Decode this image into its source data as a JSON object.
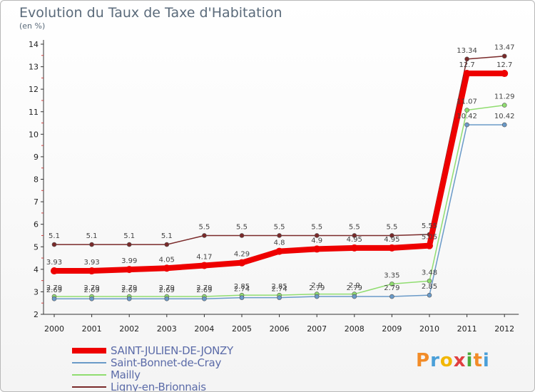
{
  "header": {
    "title": "Evolution du Taux de Taxe d'Habitation",
    "unit": "(en %)"
  },
  "logo": {
    "letters": [
      "P",
      "r",
      "o",
      "x",
      "i",
      "t",
      "i"
    ],
    "colors": [
      "#f28c28",
      "#4a9fd8",
      "#f2b705",
      "#e04040",
      "#4aaa3a",
      "#f28c28",
      "#4a9fd8"
    ]
  },
  "chart_data": {
    "type": "line",
    "title": "Evolution du Taux de Taxe d'Habitation",
    "ylabel": "(en %)",
    "xlabel": "",
    "ylim": [
      2,
      14
    ],
    "yticks": [
      2,
      3,
      4,
      5,
      6,
      7,
      8,
      9,
      10,
      11,
      12,
      13,
      14
    ],
    "categories": [
      "2000",
      "2001",
      "2002",
      "2003",
      "2004",
      "2005",
      "2006",
      "2007",
      "2008",
      "2009",
      "2010",
      "2011",
      "2012"
    ],
    "series": [
      {
        "name": "Ligny-en-Brionnais",
        "color": "#7a2a2a",
        "width": 1.5,
        "values": [
          5.1,
          5.1,
          5.1,
          5.1,
          5.5,
          5.5,
          5.5,
          5.5,
          5.5,
          5.5,
          5.55,
          13.34,
          13.47
        ],
        "labels": [
          "5.1",
          "5.1",
          "5.1",
          "5.1",
          "5.5",
          "5.5",
          "5.5",
          "5.5",
          "5.5",
          "5.5",
          "5.55",
          "13.34",
          "13.47"
        ]
      },
      {
        "name": "Mailly",
        "color": "#90dd70",
        "width": 1.5,
        "values": [
          2.79,
          2.79,
          2.79,
          2.79,
          2.79,
          2.85,
          2.85,
          2.9,
          2.9,
          3.35,
          3.48,
          11.07,
          11.29
        ],
        "labels": [
          "2.79",
          "2.79",
          "2.79",
          "2.79",
          "2.79",
          "2.85",
          "2.85",
          "2.9",
          "2.9",
          "3.35",
          "3.48",
          "11.07",
          "11.29"
        ]
      },
      {
        "name": "Saint-Bonnet-de-Cray",
        "color": "#6a9ac8",
        "width": 1.5,
        "values": [
          2.69,
          2.69,
          2.69,
          2.69,
          2.69,
          2.74,
          2.74,
          2.79,
          2.79,
          2.79,
          2.85,
          10.42,
          10.42
        ],
        "labels": [
          "2.69",
          "2.69",
          "2.69",
          "2.69",
          "2.69",
          "2.74",
          "2.74",
          "2.79",
          "2.79",
          "2.79",
          "2.85",
          "10.42",
          "10.42"
        ]
      },
      {
        "name": "SAINT-JULIEN-DE-JONZY",
        "color": "#ee0000",
        "width": 8,
        "values": [
          3.93,
          3.93,
          3.99,
          4.05,
          4.17,
          4.29,
          4.8,
          4.9,
          4.95,
          4.95,
          5.05,
          12.7,
          12.7
        ],
        "labels": [
          "3.93",
          "3.93",
          "3.99",
          "4.05",
          "4.17",
          "4.29",
          "4.8",
          "4.9",
          "4.95",
          "4.95",
          "5.05",
          "12.7",
          "12.7"
        ]
      }
    ]
  },
  "legend": [
    {
      "name": "SAINT-JULIEN-DE-JONZY",
      "color": "#ee0000",
      "thick": true
    },
    {
      "name": "Saint-Bonnet-de-Cray",
      "color": "#6a9ac8",
      "thick": false
    },
    {
      "name": "Mailly",
      "color": "#90dd70",
      "thick": false
    },
    {
      "name": "Ligny-en-Brionnais",
      "color": "#7a2a2a",
      "thick": false
    }
  ]
}
